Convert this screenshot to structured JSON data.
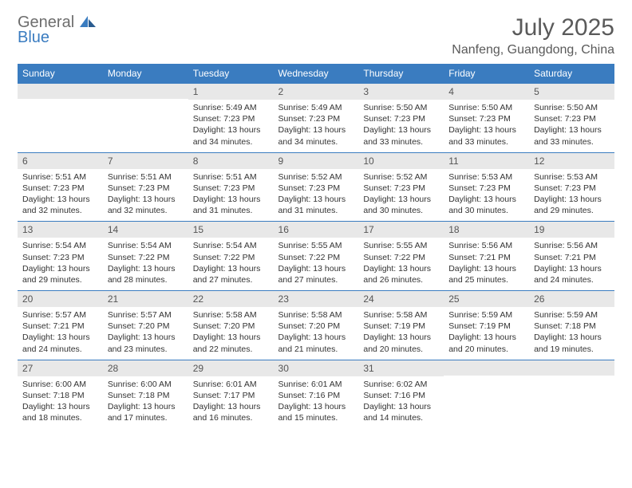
{
  "logo": {
    "general": "General",
    "blue": "Blue"
  },
  "title": "July 2025",
  "location": "Nanfeng, Guangdong, China",
  "colors": {
    "headerBar": "#3a7cc0",
    "dayNumBg": "#e8e8e8",
    "borderTop": "#3a7cc0",
    "textMuted": "#5a5a5a"
  },
  "dayNames": [
    "Sunday",
    "Monday",
    "Tuesday",
    "Wednesday",
    "Thursday",
    "Friday",
    "Saturday"
  ],
  "startOffset": 2,
  "days": [
    {
      "n": 1,
      "sr": "5:49 AM",
      "ss": "7:23 PM",
      "dl": "13 hours and 34 minutes."
    },
    {
      "n": 2,
      "sr": "5:49 AM",
      "ss": "7:23 PM",
      "dl": "13 hours and 34 minutes."
    },
    {
      "n": 3,
      "sr": "5:50 AM",
      "ss": "7:23 PM",
      "dl": "13 hours and 33 minutes."
    },
    {
      "n": 4,
      "sr": "5:50 AM",
      "ss": "7:23 PM",
      "dl": "13 hours and 33 minutes."
    },
    {
      "n": 5,
      "sr": "5:50 AM",
      "ss": "7:23 PM",
      "dl": "13 hours and 33 minutes."
    },
    {
      "n": 6,
      "sr": "5:51 AM",
      "ss": "7:23 PM",
      "dl": "13 hours and 32 minutes."
    },
    {
      "n": 7,
      "sr": "5:51 AM",
      "ss": "7:23 PM",
      "dl": "13 hours and 32 minutes."
    },
    {
      "n": 8,
      "sr": "5:51 AM",
      "ss": "7:23 PM",
      "dl": "13 hours and 31 minutes."
    },
    {
      "n": 9,
      "sr": "5:52 AM",
      "ss": "7:23 PM",
      "dl": "13 hours and 31 minutes."
    },
    {
      "n": 10,
      "sr": "5:52 AM",
      "ss": "7:23 PM",
      "dl": "13 hours and 30 minutes."
    },
    {
      "n": 11,
      "sr": "5:53 AM",
      "ss": "7:23 PM",
      "dl": "13 hours and 30 minutes."
    },
    {
      "n": 12,
      "sr": "5:53 AM",
      "ss": "7:23 PM",
      "dl": "13 hours and 29 minutes."
    },
    {
      "n": 13,
      "sr": "5:54 AM",
      "ss": "7:23 PM",
      "dl": "13 hours and 29 minutes."
    },
    {
      "n": 14,
      "sr": "5:54 AM",
      "ss": "7:22 PM",
      "dl": "13 hours and 28 minutes."
    },
    {
      "n": 15,
      "sr": "5:54 AM",
      "ss": "7:22 PM",
      "dl": "13 hours and 27 minutes."
    },
    {
      "n": 16,
      "sr": "5:55 AM",
      "ss": "7:22 PM",
      "dl": "13 hours and 27 minutes."
    },
    {
      "n": 17,
      "sr": "5:55 AM",
      "ss": "7:22 PM",
      "dl": "13 hours and 26 minutes."
    },
    {
      "n": 18,
      "sr": "5:56 AM",
      "ss": "7:21 PM",
      "dl": "13 hours and 25 minutes."
    },
    {
      "n": 19,
      "sr": "5:56 AM",
      "ss": "7:21 PM",
      "dl": "13 hours and 24 minutes."
    },
    {
      "n": 20,
      "sr": "5:57 AM",
      "ss": "7:21 PM",
      "dl": "13 hours and 24 minutes."
    },
    {
      "n": 21,
      "sr": "5:57 AM",
      "ss": "7:20 PM",
      "dl": "13 hours and 23 minutes."
    },
    {
      "n": 22,
      "sr": "5:58 AM",
      "ss": "7:20 PM",
      "dl": "13 hours and 22 minutes."
    },
    {
      "n": 23,
      "sr": "5:58 AM",
      "ss": "7:20 PM",
      "dl": "13 hours and 21 minutes."
    },
    {
      "n": 24,
      "sr": "5:58 AM",
      "ss": "7:19 PM",
      "dl": "13 hours and 20 minutes."
    },
    {
      "n": 25,
      "sr": "5:59 AM",
      "ss": "7:19 PM",
      "dl": "13 hours and 20 minutes."
    },
    {
      "n": 26,
      "sr": "5:59 AM",
      "ss": "7:18 PM",
      "dl": "13 hours and 19 minutes."
    },
    {
      "n": 27,
      "sr": "6:00 AM",
      "ss": "7:18 PM",
      "dl": "13 hours and 18 minutes."
    },
    {
      "n": 28,
      "sr": "6:00 AM",
      "ss": "7:18 PM",
      "dl": "13 hours and 17 minutes."
    },
    {
      "n": 29,
      "sr": "6:01 AM",
      "ss": "7:17 PM",
      "dl": "13 hours and 16 minutes."
    },
    {
      "n": 30,
      "sr": "6:01 AM",
      "ss": "7:16 PM",
      "dl": "13 hours and 15 minutes."
    },
    {
      "n": 31,
      "sr": "6:02 AM",
      "ss": "7:16 PM",
      "dl": "13 hours and 14 minutes."
    }
  ],
  "labels": {
    "sunrise": "Sunrise:",
    "sunset": "Sunset:",
    "daylight": "Daylight:"
  }
}
